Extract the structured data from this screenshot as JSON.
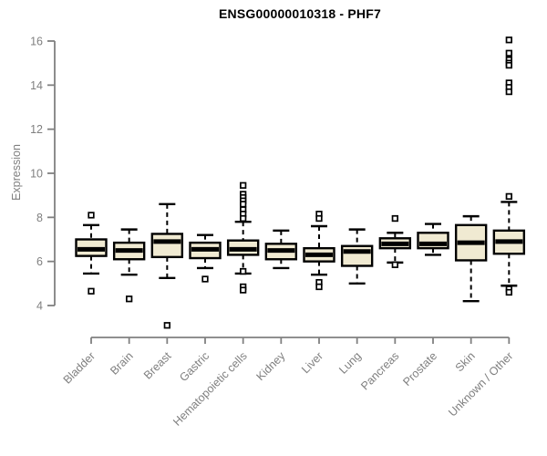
{
  "chart_data": {
    "type": "boxplot",
    "title": "ENSG00000010318 - PHF7",
    "xlabel": "",
    "ylabel": "Expression",
    "ylim": [
      4,
      16
    ],
    "y_ticks": [
      16,
      14,
      12,
      10,
      8,
      6,
      4
    ],
    "grid": false,
    "legend": false,
    "outlier_marker": "open-square",
    "whisker_style": "dashed",
    "colors": {
      "box_fill": "#f0ead2",
      "box_border": "#000000",
      "median": "#000000",
      "whisker": "#000000",
      "axis_line": "#808080",
      "axis_text": "#7f7f7f",
      "title_text": "#000000",
      "background": "#ffffff"
    },
    "categories": [
      "Bladder",
      "Brain",
      "Breast",
      "Gastric",
      "Hematopoietic cells",
      "Kidney",
      "Liver",
      "Lung",
      "Pancreas",
      "Prostate",
      "Skin",
      "Unknown / Other"
    ],
    "series": [
      {
        "label": "Bladder",
        "whisker_low": 5.45,
        "q1": 6.25,
        "median": 6.55,
        "q3": 7.0,
        "whisker_high": 7.65,
        "outliers": [
          8.1,
          4.65
        ]
      },
      {
        "label": "Brain",
        "whisker_low": 5.4,
        "q1": 6.1,
        "median": 6.5,
        "q3": 6.85,
        "whisker_high": 7.45,
        "outliers": [
          4.3
        ]
      },
      {
        "label": "Breast",
        "whisker_low": 5.25,
        "q1": 6.2,
        "median": 6.9,
        "q3": 7.25,
        "whisker_high": 8.6,
        "outliers": [
          3.1
        ]
      },
      {
        "label": "Gastric",
        "whisker_low": 5.7,
        "q1": 6.15,
        "median": 6.55,
        "q3": 6.85,
        "whisker_high": 7.2,
        "outliers": [
          5.2
        ]
      },
      {
        "label": "Hematopoietic cells",
        "whisker_low": 5.45,
        "q1": 6.3,
        "median": 6.55,
        "q3": 6.95,
        "whisker_high": 7.8,
        "outliers": [
          9.45,
          9.05,
          8.9,
          8.75,
          8.6,
          8.35,
          8.15,
          7.95,
          5.55,
          4.85,
          4.7
        ]
      },
      {
        "label": "Kidney",
        "whisker_low": 5.7,
        "q1": 6.1,
        "median": 6.5,
        "q3": 6.8,
        "whisker_high": 7.4,
        "outliers": []
      },
      {
        "label": "Liver",
        "whisker_low": 5.4,
        "q1": 6.0,
        "median": 6.3,
        "q3": 6.6,
        "whisker_high": 7.6,
        "outliers": [
          8.15,
          7.95,
          5.05,
          4.85
        ]
      },
      {
        "label": "Lung",
        "whisker_low": 5.0,
        "q1": 5.8,
        "median": 6.45,
        "q3": 6.7,
        "whisker_high": 7.45,
        "outliers": []
      },
      {
        "label": "Pancreas",
        "whisker_low": 5.95,
        "q1": 6.6,
        "median": 6.8,
        "q3": 7.05,
        "whisker_high": 7.3,
        "outliers": [
          7.95,
          5.85
        ]
      },
      {
        "label": "Prostate",
        "whisker_low": 6.3,
        "q1": 6.6,
        "median": 6.8,
        "q3": 7.3,
        "whisker_high": 7.7,
        "outliers": []
      },
      {
        "label": "Skin",
        "whisker_low": 4.2,
        "q1": 6.05,
        "median": 6.85,
        "q3": 7.65,
        "whisker_high": 8.05,
        "outliers": []
      },
      {
        "label": "Unknown / Other",
        "whisker_low": 4.9,
        "q1": 6.35,
        "median": 6.9,
        "q3": 7.4,
        "whisker_high": 8.7,
        "outliers": [
          16.05,
          15.45,
          15.15,
          15.0,
          14.9,
          14.1,
          13.9,
          13.7,
          8.95,
          4.75,
          4.6
        ]
      }
    ]
  }
}
